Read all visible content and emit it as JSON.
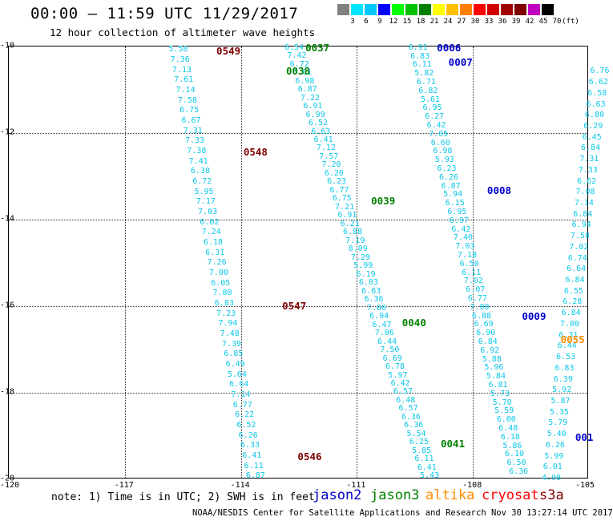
{
  "header": {
    "title": "00:00 — 11:59 UTC 11/29/2017",
    "subtitle": "12 hour collection of altimeter wave heights"
  },
  "color_scale": {
    "labels": [
      "3",
      "6",
      "9",
      "12",
      "15",
      "18",
      "21",
      "24",
      "27",
      "30",
      "33",
      "36",
      "39",
      "42",
      "45",
      "70",
      "(ft)"
    ],
    "colors": [
      "#808080",
      "#00e5ff",
      "#00c8ff",
      "#0000ff",
      "#00ff00",
      "#00c000",
      "#008000",
      "#ffff00",
      "#ffc000",
      "#ff8000",
      "#ff0000",
      "#d00000",
      "#a00000",
      "#800000",
      "#c000c0",
      "#000000"
    ]
  },
  "axes": {
    "x_ticks": [
      "-120",
      "-117",
      "-114",
      "-111",
      "-108",
      "-105"
    ],
    "y_ticks": [
      "-10",
      "-12",
      "-14",
      "-16",
      "-18",
      "-20"
    ],
    "xlim": [
      -120,
      -105
    ],
    "ylim": [
      -20,
      -10
    ]
  },
  "chart_data": {
    "type": "scatter",
    "title": "00:00 — 11:59 UTC 11/29/2017",
    "subtitle": "12 hour collection of altimeter wave heights",
    "xlim": [
      -120,
      -105
    ],
    "ylim": [
      -20,
      -10
    ],
    "grid": true,
    "units": "ft",
    "tracks": [
      {
        "satellite": "s3a",
        "values": [
          "5.58",
          "7.36",
          "7.13",
          "7.61",
          "7.14",
          "7.58",
          "6.75",
          "6.67",
          "7.31",
          "7.33",
          "7.38",
          "7.41",
          "6.38",
          "6.72",
          "5.95",
          "7.17",
          "7.03",
          "6.02",
          "7.24",
          "6.18",
          "6.31",
          "7.26",
          "7.00",
          "6.05",
          "7.80",
          "6.83",
          "7.23",
          "7.94",
          "7.48",
          "7.39",
          "6.85",
          "6.49",
          "5.64",
          "6.64",
          "7.14",
          "6.77",
          "6.22",
          "6.52",
          "6.26",
          "6.33",
          "6.41",
          "6.11",
          "6.87"
        ],
        "x_start": -115.6,
        "x_end": -113.6,
        "y_start": -10.1,
        "y_end": -19.95
      },
      {
        "satellite": "jason3",
        "values": [
          "6.54",
          "7.42",
          "6.72",
          "6.61",
          "6.98",
          "6.87",
          "7.22",
          "6.91",
          "6.99",
          "6.52",
          "6.63",
          "6.41",
          "7.12",
          "7.57",
          "7.20",
          "6.20",
          "6.23",
          "6.77",
          "6.75",
          "7.21",
          "6.91",
          "6.21",
          "6.88",
          "7.19",
          "8.09",
          "7.29",
          "5.99",
          "6.19",
          "6.03",
          "6.63",
          "6.36",
          "7.00",
          "6.94",
          "6.47",
          "7.06",
          "6.44",
          "7.50",
          "6.69",
          "6.78",
          "5.97",
          "6.42",
          "6.57",
          "6.48",
          "6.57",
          "6.36",
          "6.36",
          "5.54",
          "6.25",
          "5.85",
          "6.11",
          "6.41",
          "5.43"
        ],
        "x_start": -112.6,
        "x_end": -109.1,
        "y_start": -10.05,
        "y_end": -19.95
      },
      {
        "satellite": "jason2",
        "values": [
          "6.91",
          "6.83",
          "6.11",
          "5.82",
          "6.71",
          "6.82",
          "5.61",
          "6.95",
          "6.27",
          "6.42",
          "7.05",
          "6.60",
          "6.98",
          "5.93",
          "6.23",
          "6.26",
          "6.87",
          "5.94",
          "6.15",
          "6.95",
          "6.97",
          "6.42",
          "7.40",
          "7.03",
          "7.18",
          "6.50",
          "6.11",
          "7.02",
          "6.07",
          "6.77",
          "7.00",
          "6.88",
          "6.69",
          "6.90",
          "6.84",
          "6.92",
          "5.88",
          "5.96",
          "5.84",
          "6.81",
          "5.73",
          "5.70",
          "5.59",
          "6.00",
          "6.48",
          "6.18",
          "5.86",
          "6.10",
          "6.50",
          "6.36"
        ],
        "x_start": -109.4,
        "x_end": -106.8,
        "y_start": -10.05,
        "y_end": -19.85
      },
      {
        "satellite": "jason2",
        "values": [
          "6.76",
          "6.62",
          "6.58",
          "6.63",
          "6.80",
          "6.29",
          "6.45",
          "6.84",
          "7.31",
          "7.33",
          "6.62",
          "7.08",
          "7.14",
          "6.84",
          "6.94",
          "7.58",
          "7.02",
          "6.74",
          "6.64",
          "6.84",
          "6.55",
          "6.28",
          "6.84",
          "7.00",
          "6.31",
          "6.44",
          "6.53",
          "6.83",
          "6.39",
          "5.92",
          "5.87",
          "5.35",
          "5.79",
          "5.40",
          "6.26",
          "5.99",
          "6.01",
          "4.98"
        ],
        "x_start": -104.7,
        "x_end": -105.95,
        "y_start": -10.6,
        "y_end": -20.0
      }
    ],
    "pass_labels": [
      {
        "text": "0549",
        "satellite": "s3a",
        "x": -114.3,
        "y": -10.13
      },
      {
        "text": "0548",
        "satellite": "s3a",
        "x": -113.6,
        "y": -12.47
      },
      {
        "text": "0547",
        "satellite": "s3a",
        "x": -112.6,
        "y": -16.01
      },
      {
        "text": "0546",
        "satellite": "s3a",
        "x": -112.2,
        "y": -19.5
      },
      {
        "text": "0037",
        "satellite": "jason3",
        "x": -112.0,
        "y": -10.05
      },
      {
        "text": "0038",
        "satellite": "jason3",
        "x": -112.5,
        "y": -10.6
      },
      {
        "text": "0039",
        "satellite": "jason3",
        "x": -110.3,
        "y": -13.6
      },
      {
        "text": "0040",
        "satellite": "jason3",
        "x": -109.5,
        "y": -16.4
      },
      {
        "text": "0041",
        "satellite": "jason3",
        "x": -108.5,
        "y": -19.2
      },
      {
        "text": "0006",
        "satellite": "jason2",
        "x": -108.6,
        "y": -10.05
      },
      {
        "text": "0007",
        "satellite": "jason2",
        "x": -108.3,
        "y": -10.39
      },
      {
        "text": "0008",
        "satellite": "jason2",
        "x": -107.3,
        "y": -13.35
      },
      {
        "text": "0009",
        "satellite": "jason2",
        "x": -106.4,
        "y": -16.26
      },
      {
        "text": "0055",
        "satellite": "altika",
        "x": -105.4,
        "y": -16.8
      },
      {
        "text": "001",
        "satellite": "jason2",
        "x": -105.1,
        "y": -19.05
      }
    ]
  },
  "footer": {
    "note": "note: 1) Time is in UTC; 2) SWH is in feet",
    "legend": [
      {
        "name": "jason2",
        "color": "#0000cc"
      },
      {
        "name": "jason3",
        "color": "#008000"
      },
      {
        "name": "altika",
        "color": "#ff8c00"
      },
      {
        "name": "cryosat",
        "color": "#ff0000"
      },
      {
        "name": "s3a",
        "color": "#800000"
      }
    ],
    "credit": "NOAA/NESDIS Center for Satellite Applications and Research   Nov 30 13:27:14 UTC 2017"
  }
}
